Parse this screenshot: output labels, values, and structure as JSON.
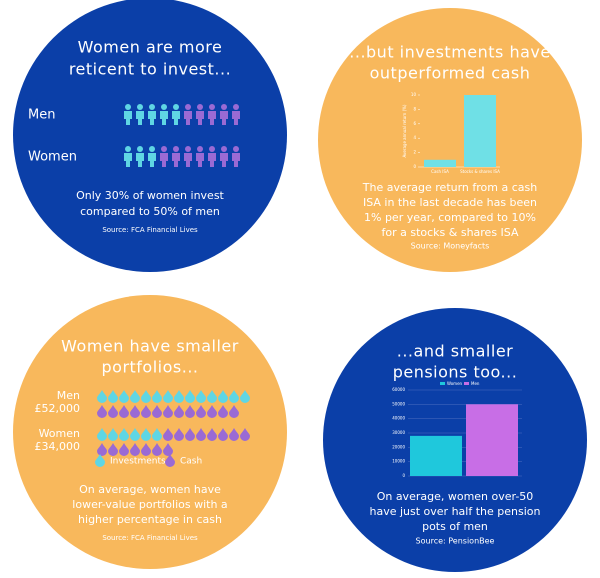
{
  "panels": [
    {
      "title": [
        "Women are more",
        "reticent to invest..."
      ],
      "rows": [
        {
          "label": "Men",
          "value": 50
        },
        {
          "label": "Women",
          "value": 30
        }
      ],
      "caption": [
        "Only 30% of women invest",
        "compared to 50% of men"
      ],
      "source": "Source: FCA Financial Lives"
    },
    {
      "title": [
        "...but investments have",
        "outperformed cash"
      ],
      "chart": {
        "type": "bar",
        "ylabel": "Average annual return (%)",
        "categories": [
          "Cash ISA",
          "Stocks & shares ISA"
        ],
        "values": [
          1,
          10
        ],
        "ylim": [
          0,
          10
        ],
        "yticks": [
          0,
          2,
          4,
          6,
          8,
          10
        ],
        "color": "#6fe0e6"
      },
      "caption": [
        "The average return from a cash",
        "ISA in the last decade has been",
        "1% per year, compared to 10%",
        "for a stocks & shares ISA"
      ],
      "source": "Source: Moneyfacts"
    },
    {
      "title": [
        "Women have smaller",
        "portfolios..."
      ],
      "rows": [
        {
          "label": [
            "Men",
            "£52,000"
          ],
          "investments": 14,
          "cash": 13
        },
        {
          "label": [
            "Women",
            "£34,000"
          ],
          "investments": 6,
          "cash": 15
        }
      ],
      "legend": [
        "Investments",
        "Cash"
      ],
      "caption": [
        "On average, women have",
        "lower-value portfolios with a",
        "higher percentage in cash"
      ],
      "source": "Source: FCA Financial Lives"
    },
    {
      "title": [
        "...and smaller",
        "pensions too..."
      ],
      "chart": {
        "type": "bar",
        "series": [
          {
            "name": "Women",
            "color": "#1fc8dc",
            "values": [
              28000
            ]
          },
          {
            "name": "Men",
            "color": "#c86ee6",
            "values": [
              50000
            ]
          }
        ],
        "ylim": [
          0,
          60000
        ],
        "yticks": [
          0,
          10000,
          20000,
          30000,
          40000,
          50000,
          60000
        ]
      },
      "caption": [
        "On average, women over-50",
        "have just over half the pension",
        "pots of men"
      ],
      "source": "Source: PensionBee"
    }
  ]
}
